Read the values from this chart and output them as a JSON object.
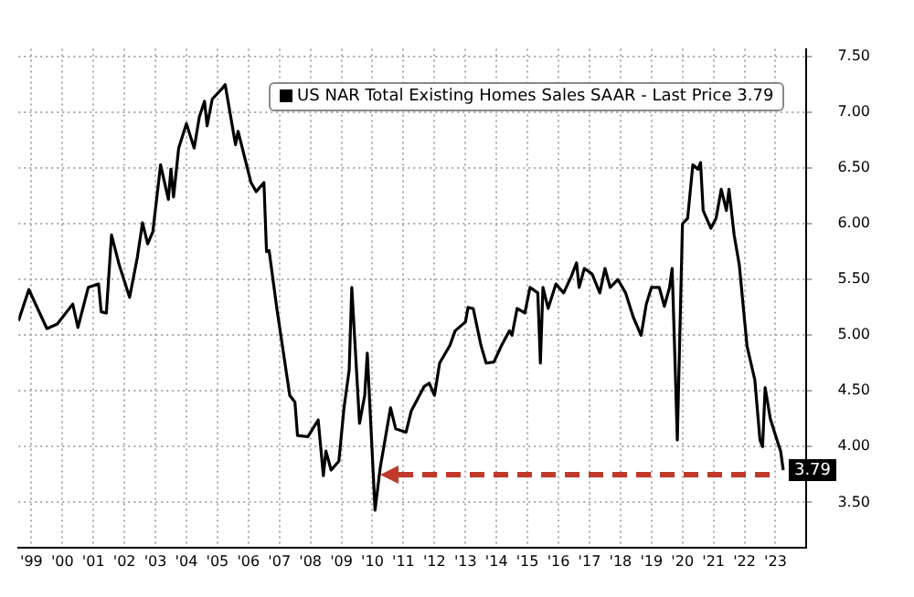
{
  "chart_data": {
    "type": "line",
    "legend": "top right",
    "grid": true,
    "marker": "none",
    "line_style": "solid",
    "xlim": [
      "1999-02",
      "2024-07"
    ],
    "ylim": [
      3.09,
      7.57
    ],
    "xticks": [
      {
        "value": "1999-07",
        "label": "'99"
      },
      {
        "value": "2000-07",
        "label": "'00"
      },
      {
        "value": "2001-07",
        "label": "'01"
      },
      {
        "value": "2002-07",
        "label": "'02"
      },
      {
        "value": "2003-07",
        "label": "'03"
      },
      {
        "value": "2004-07",
        "label": "'04"
      },
      {
        "value": "2005-07",
        "label": "'05"
      },
      {
        "value": "2006-07",
        "label": "'06"
      },
      {
        "value": "2007-07",
        "label": "'07"
      },
      {
        "value": "2008-07",
        "label": "'08"
      },
      {
        "value": "2009-07",
        "label": "'09"
      },
      {
        "value": "2010-07",
        "label": "'10"
      },
      {
        "value": "2011-07",
        "label": "'11"
      },
      {
        "value": "2012-07",
        "label": "'12"
      },
      {
        "value": "2013-07",
        "label": "'13"
      },
      {
        "value": "2014-07",
        "label": "'14"
      },
      {
        "value": "2015-07",
        "label": "'15"
      },
      {
        "value": "2016-07",
        "label": "'16"
      },
      {
        "value": "2017-07",
        "label": "'17"
      },
      {
        "value": "2018-07",
        "label": "'18"
      },
      {
        "value": "2019-07",
        "label": "'19"
      },
      {
        "value": "2020-07",
        "label": "'20"
      },
      {
        "value": "2021-07",
        "label": "'21"
      },
      {
        "value": "2022-07",
        "label": "'22"
      },
      {
        "value": "2023-07",
        "label": "'23"
      }
    ],
    "yticks": [
      {
        "value": 3.5,
        "label": "3.50"
      },
      {
        "value": 4,
        "label": "4.00"
      },
      {
        "value": 4.5,
        "label": "4.50"
      },
      {
        "value": 5,
        "label": "5.00"
      },
      {
        "value": 5.5,
        "label": "5.50"
      },
      {
        "value": 6,
        "label": "6.00"
      },
      {
        "value": 6.5,
        "label": "6.50"
      },
      {
        "value": 7,
        "label": "7.00"
      },
      {
        "value": 7.5,
        "label": "7.50"
      }
    ],
    "series": [
      {
        "name": "US NAR Total Existing Homes Sales SAAR - Last Price 3.79",
        "color": "#000000",
        "x": [
          "1999-02",
          "1999-06",
          "2000-01",
          "2000-05",
          "2000-11",
          "2001-01",
          "2001-05",
          "2001-09",
          "2001-10",
          "2001-12",
          "2002-02",
          "2002-05",
          "2002-09",
          "2002-12",
          "2003-02",
          "2003-04",
          "2003-06",
          "2003-09",
          "2003-12",
          "2004-01",
          "2004-02",
          "2004-04",
          "2004-07",
          "2004-10",
          "2004-12",
          "2005-02",
          "2005-03",
          "2005-05",
          "2005-09",
          "2005-10",
          "2006-02",
          "2006-03",
          "2006-08",
          "2006-10",
          "2007-01",
          "2007-02",
          "2007-03",
          "2007-06",
          "2007-11",
          "2008-01",
          "2008-02",
          "2008-06",
          "2008-10",
          "2008-12",
          "2009-01",
          "2009-03",
          "2009-06",
          "2009-08",
          "2009-10",
          "2009-11",
          "2010-02",
          "2010-04",
          "2010-05",
          "2010-08",
          "2010-10",
          "2011-02",
          "2011-04",
          "2011-08",
          "2011-10",
          "2012-03",
          "2012-05",
          "2012-07",
          "2012-09",
          "2013-01",
          "2013-03",
          "2013-07",
          "2013-08",
          "2013-10",
          "2014-01",
          "2014-03",
          "2014-06",
          "2014-09",
          "2014-12",
          "2015-01",
          "2015-03",
          "2015-06",
          "2015-08",
          "2015-11",
          "2015-12",
          "2016-01",
          "2016-03",
          "2016-06",
          "2016-09",
          "2016-12",
          "2017-02",
          "2017-03",
          "2017-05",
          "2017-08",
          "2017-11",
          "2018-01",
          "2018-03",
          "2018-06",
          "2018-09",
          "2018-12",
          "2019-03",
          "2019-05",
          "2019-07",
          "2019-10",
          "2019-12",
          "2020-02",
          "2020-03",
          "2020-04",
          "2020-05",
          "2020-07",
          "2020-09",
          "2020-11",
          "2021-01",
          "2021-02",
          "2021-03",
          "2021-06",
          "2021-08",
          "2021-10",
          "2021-12",
          "2022-01",
          "2022-03",
          "2022-05",
          "2022-08",
          "2022-11",
          "2023-01",
          "2023-02",
          "2023-03",
          "2023-05",
          "2023-08",
          "2023-09",
          "2023-10"
        ],
        "values": [
          5.13,
          5.41,
          5.06,
          5.1,
          5.28,
          5.07,
          5.43,
          5.46,
          5.21,
          5.2,
          5.9,
          5.63,
          5.34,
          5.7,
          6.01,
          5.82,
          5.93,
          6.53,
          6.22,
          6.49,
          6.24,
          6.68,
          6.9,
          6.68,
          6.96,
          7.1,
          6.88,
          7.12,
          7.22,
          7.25,
          6.71,
          6.83,
          6.37,
          6.29,
          6.37,
          5.75,
          5.76,
          5.24,
          4.46,
          4.4,
          4.1,
          4.09,
          4.24,
          3.74,
          3.96,
          3.79,
          3.87,
          4.35,
          4.69,
          5.43,
          4.21,
          4.46,
          4.84,
          3.43,
          3.81,
          4.35,
          4.16,
          4.13,
          4.32,
          4.54,
          4.57,
          4.46,
          4.75,
          4.91,
          5.04,
          5.12,
          5.25,
          5.24,
          4.91,
          4.75,
          4.76,
          4.91,
          5.04,
          5.0,
          5.24,
          5.2,
          5.43,
          5.38,
          4.75,
          5.43,
          5.24,
          5.46,
          5.38,
          5.53,
          5.65,
          5.43,
          5.6,
          5.55,
          5.38,
          5.6,
          5.43,
          5.5,
          5.38,
          5.16,
          5.0,
          5.28,
          5.43,
          5.43,
          5.26,
          5.43,
          5.6,
          4.85,
          4.06,
          6.0,
          6.05,
          6.53,
          6.49,
          6.55,
          6.12,
          5.96,
          6.05,
          6.31,
          6.12,
          6.31,
          5.9,
          5.63,
          4.9,
          4.6,
          4.06,
          4.0,
          4.53,
          4.25,
          4.03,
          3.96,
          3.79
        ],
        "value_labels": [
          null,
          null,
          null,
          null,
          null,
          null,
          null,
          null,
          null,
          null,
          null,
          null,
          null,
          null,
          null,
          null,
          null,
          null,
          null,
          null,
          null,
          null,
          null,
          null,
          null,
          null,
          null,
          null,
          null,
          null,
          null,
          null,
          null,
          null,
          null,
          null,
          null,
          null,
          null,
          null,
          null,
          null,
          null,
          null,
          null,
          null,
          null,
          null,
          null,
          null,
          null,
          null,
          null,
          null,
          null,
          null,
          null,
          null,
          null,
          null,
          null,
          null,
          null,
          null,
          null,
          null,
          null,
          null,
          null,
          null,
          null,
          null,
          null,
          null,
          null,
          null,
          null,
          null,
          null,
          null,
          null,
          null,
          null,
          null,
          null,
          null,
          null,
          null,
          null,
          null,
          null,
          null,
          null,
          null,
          null,
          null,
          null,
          null,
          null,
          null,
          null,
          null,
          null,
          null,
          null,
          null,
          null,
          null,
          null,
          null,
          null,
          null,
          null,
          null,
          null,
          null,
          null,
          null,
          null,
          null,
          null,
          null,
          null,
          null,
          "3.79"
        ]
      }
    ]
  }
}
